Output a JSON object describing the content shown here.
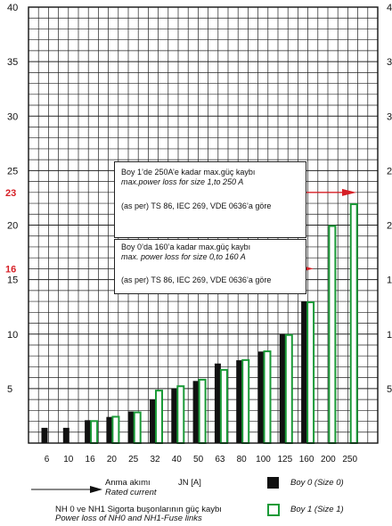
{
  "chart_data": {
    "type": "bar",
    "categories": [
      "6",
      "10",
      "16",
      "20",
      "25",
      "32",
      "40",
      "50",
      "63",
      "80",
      "100",
      "125",
      "160",
      "200",
      "250"
    ],
    "series": [
      {
        "name": "Boy 0 (Size 0)",
        "values": [
          1.4,
          1.4,
          2.1,
          2.4,
          2.9,
          4.0,
          5.0,
          5.7,
          7.3,
          7.6,
          8.4,
          10.0,
          13.0,
          null,
          null
        ]
      },
      {
        "name": "Boy 1 (Size 1)",
        "values": [
          null,
          null,
          2.1,
          2.5,
          2.9,
          4.9,
          5.3,
          5.9,
          6.8,
          7.7,
          8.5,
          10.0,
          13.0,
          20.0,
          22.0
        ]
      }
    ],
    "y_ticks": [
      "5",
      "10",
      "15",
      "20",
      "25",
      "30",
      "35",
      "40"
    ],
    "ylim": [
      0,
      40
    ],
    "grid": true,
    "markers": [
      {
        "label": "23",
        "value": 23,
        "color": "#d61f26"
      },
      {
        "label": "16",
        "value": 16,
        "color": "#d61f26"
      }
    ],
    "colors": {
      "size0": "#111111",
      "size1": "#1a9a37",
      "marker": "#d61f26"
    },
    "annotation_1": {
      "line1": "Boy 1’de 250A’e kadar max.güç kaybı",
      "line2": "max.power loss for size 1,to 250 A",
      "line3": "(as per) TS 86, IEC 269, VDE 0636’a göre"
    },
    "annotation_2": {
      "line1": "Boy 0’da 160’a kadar max.güç kaybı",
      "line2": "max. power loss for size 0,to 160 A",
      "line3": "(as per) TS 86, IEC 269, VDE 0636’a göre"
    }
  },
  "legend": {
    "xlabel_tr": "Anma akımı",
    "xlabel_unit": "JN [A]",
    "xlabel_en": "Rated current",
    "item_size0": "Boy 0 (Size 0)",
    "item_size1": "Boy 1 (Size 1)",
    "caption_tr": "NH 0 ve NH1 Sigorta buşonlarının güç kaybı",
    "caption_en": "Power loss of NH0 and NH1-Fuse links"
  }
}
